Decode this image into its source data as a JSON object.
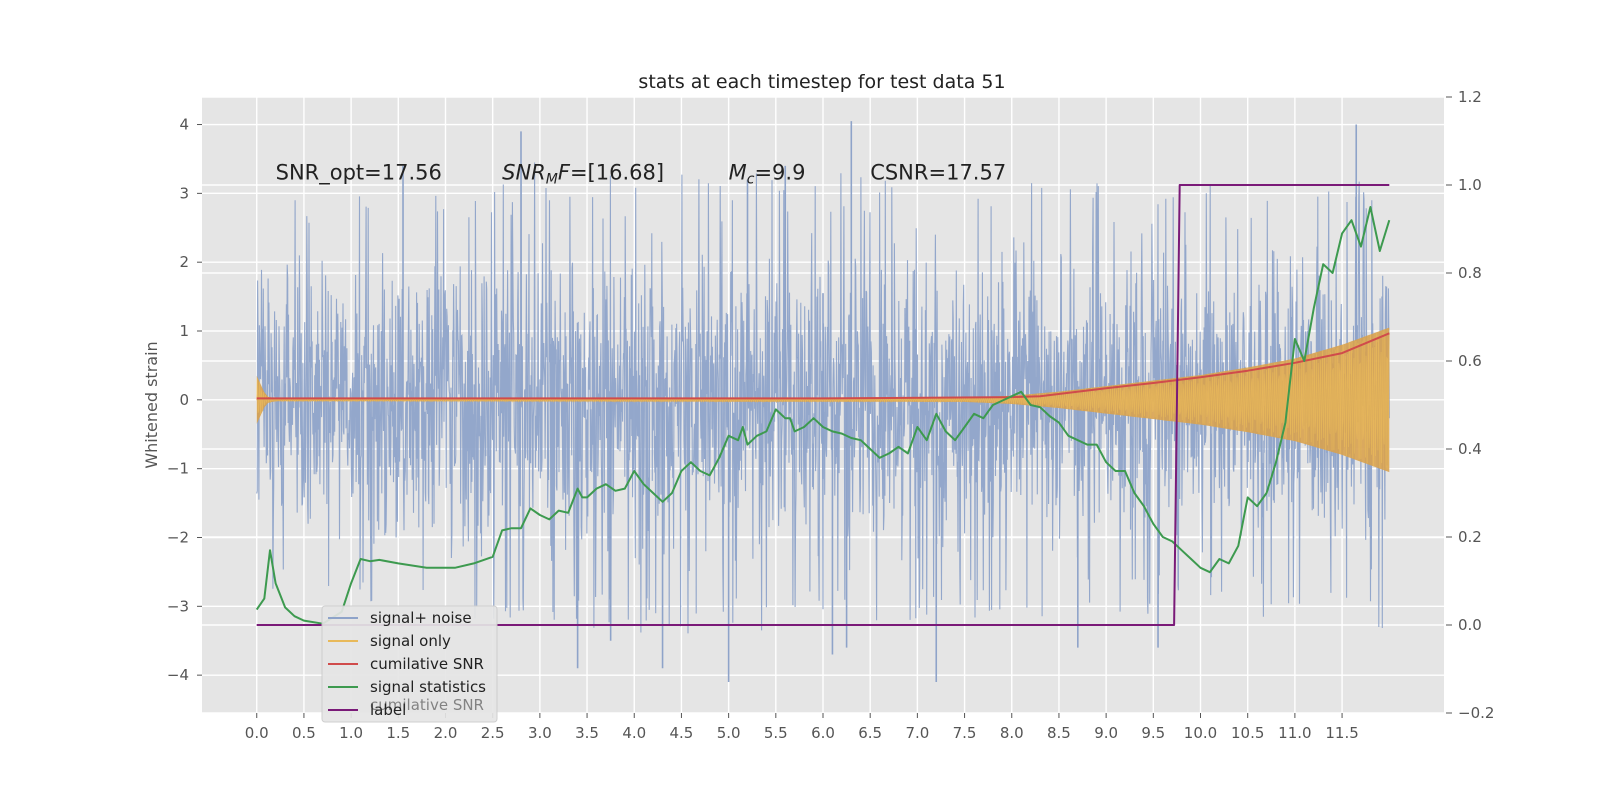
{
  "chart_data": {
    "type": "line",
    "title": "stats at each timestep for test data 51",
    "xlabel": "",
    "ylabel": "Whitened strain",
    "y2label": "",
    "xlim": [
      -0.58,
      12.58
    ],
    "ylim": [
      -4.55,
      4.4
    ],
    "y2lim": [
      -0.2,
      1.2
    ],
    "xticks": [
      "0.0",
      "0.5",
      "1.0",
      "1.5",
      "2.0",
      "2.5",
      "3.0",
      "3.5",
      "4.0",
      "4.5",
      "5.0",
      "5.5",
      "6.0",
      "6.5",
      "7.0",
      "7.5",
      "8.0",
      "8.5",
      "9.0",
      "9.5",
      "10.0",
      "10.5",
      "11.0",
      "11.5"
    ],
    "yticks": [
      -4,
      -3,
      -2,
      -1,
      0,
      1,
      2,
      3,
      4
    ],
    "y2ticks": [
      "−0.2",
      "0.0",
      "0.2",
      "0.4",
      "0.6",
      "0.8",
      "1.0",
      "1.2"
    ],
    "grid": true,
    "legend_position": "lower-left",
    "annotations": [
      {
        "label": "SNR_opt=17.56",
        "x": 0.2,
        "y": 3.3
      },
      {
        "label": "SNR_MF=[16.68]",
        "x": 2.6,
        "y": 3.3
      },
      {
        "label": "M_c=9.9",
        "x": 5.0,
        "y": 3.3
      },
      {
        "label": "CSNR=17.57",
        "x": 6.5,
        "y": 3.3
      }
    ],
    "series": [
      {
        "name": "signal+ noise",
        "axis": "left",
        "color": "#8ea3c9",
        "style": "dense-noise",
        "x_range": [
          0.0,
          12.0
        ],
        "envelope_x": [
          0.0,
          1.0,
          2.0,
          3.0,
          4.0,
          5.0,
          6.0,
          7.0,
          8.0,
          9.0,
          10.0,
          11.0,
          12.0
        ],
        "envelope_abs": [
          2.7,
          2.9,
          3.1,
          3.3,
          3.3,
          3.2,
          3.2,
          3.1,
          3.0,
          3.0,
          3.0,
          3.2,
          3.2
        ],
        "spikes": [
          [
            1.55,
            3.4
          ],
          [
            2.8,
            3.9
          ],
          [
            3.4,
            -3.9
          ],
          [
            3.75,
            -3.5
          ],
          [
            4.3,
            -3.9
          ],
          [
            5.0,
            -4.1
          ],
          [
            5.2,
            3.2
          ],
          [
            5.6,
            3.4
          ],
          [
            6.1,
            -3.7
          ],
          [
            6.25,
            -3.6
          ],
          [
            6.3,
            4.05
          ],
          [
            6.0,
            1.55
          ],
          [
            6.0,
            -1.15
          ],
          [
            7.2,
            -4.1
          ],
          [
            8.7,
            -3.6
          ],
          [
            9.55,
            -3.6
          ],
          [
            11.65,
            4.0
          ]
        ]
      },
      {
        "name": "signal only",
        "axis": "left",
        "color": "#e8b95a",
        "fill_color": "#d8a24f",
        "style": "chirp",
        "x": [
          0.0,
          0.1,
          0.2,
          7.5,
          8.0,
          8.5,
          9.0,
          9.5,
          10.0,
          10.5,
          11.0,
          11.5,
          12.0
        ],
        "amp": [
          0.35,
          0.05,
          0.02,
          0.03,
          0.06,
          0.12,
          0.2,
          0.28,
          0.36,
          0.47,
          0.6,
          0.8,
          1.05
        ]
      },
      {
        "name": "cumilative SNR",
        "axis": "right",
        "color": "#d04b4b",
        "x": [
          0.0,
          3.0,
          6.0,
          8.0,
          8.3,
          9.0,
          9.5,
          10.0,
          10.5,
          11.0,
          11.5,
          12.0
        ],
        "y": [
          0.515,
          0.515,
          0.515,
          0.518,
          0.52,
          0.538,
          0.55,
          0.563,
          0.578,
          0.596,
          0.618,
          0.663
        ]
      },
      {
        "name": "signal statistics",
        "axis": "right",
        "color": "#3d9a4f",
        "x": [
          0.0,
          0.08,
          0.14,
          0.2,
          0.3,
          0.4,
          0.5,
          0.7,
          0.9,
          1.0,
          1.1,
          1.2,
          1.3,
          1.5,
          1.8,
          2.1,
          2.3,
          2.5,
          2.6,
          2.7,
          2.8,
          2.9,
          3.0,
          3.1,
          3.2,
          3.3,
          3.4,
          3.45,
          3.5,
          3.6,
          3.7,
          3.8,
          3.9,
          4.0,
          4.1,
          4.2,
          4.3,
          4.4,
          4.5,
          4.6,
          4.7,
          4.8,
          4.9,
          5.0,
          5.1,
          5.15,
          5.2,
          5.3,
          5.4,
          5.5,
          5.6,
          5.65,
          5.7,
          5.8,
          5.9,
          6.0,
          6.1,
          6.2,
          6.3,
          6.4,
          6.5,
          6.6,
          6.7,
          6.8,
          6.9,
          7.0,
          7.1,
          7.2,
          7.3,
          7.4,
          7.5,
          7.6,
          7.7,
          7.8,
          7.9,
          8.0,
          8.1,
          8.2,
          8.3,
          8.4,
          8.5,
          8.6,
          8.7,
          8.8,
          8.9,
          9.0,
          9.1,
          9.2,
          9.3,
          9.4,
          9.5,
          9.6,
          9.7,
          9.8,
          9.9,
          10.0,
          10.1,
          10.2,
          10.3,
          10.4,
          10.5,
          10.6,
          10.7,
          10.8,
          10.9,
          11.0,
          11.1,
          11.2,
          11.3,
          11.4,
          11.5,
          11.6,
          11.7,
          11.8,
          11.9,
          12.0
        ],
        "y": [
          0.035,
          0.06,
          0.17,
          0.095,
          0.04,
          0.02,
          0.01,
          0.003,
          0.03,
          0.095,
          0.15,
          0.145,
          0.148,
          0.14,
          0.13,
          0.13,
          0.14,
          0.155,
          0.215,
          0.22,
          0.22,
          0.265,
          0.25,
          0.24,
          0.26,
          0.255,
          0.31,
          0.29,
          0.29,
          0.31,
          0.32,
          0.305,
          0.31,
          0.35,
          0.32,
          0.3,
          0.28,
          0.3,
          0.35,
          0.37,
          0.35,
          0.34,
          0.38,
          0.43,
          0.42,
          0.45,
          0.41,
          0.43,
          0.44,
          0.49,
          0.47,
          0.47,
          0.44,
          0.45,
          0.47,
          0.45,
          0.44,
          0.435,
          0.425,
          0.42,
          0.4,
          0.38,
          0.39,
          0.405,
          0.39,
          0.45,
          0.42,
          0.48,
          0.44,
          0.42,
          0.45,
          0.48,
          0.47,
          0.5,
          0.51,
          0.52,
          0.53,
          0.5,
          0.495,
          0.475,
          0.46,
          0.43,
          0.42,
          0.41,
          0.41,
          0.37,
          0.35,
          0.35,
          0.3,
          0.27,
          0.23,
          0.2,
          0.19,
          0.17,
          0.15,
          0.13,
          0.12,
          0.15,
          0.14,
          0.18,
          0.29,
          0.27,
          0.3,
          0.37,
          0.46,
          0.65,
          0.6,
          0.72,
          0.82,
          0.8,
          0.89,
          0.92,
          0.86,
          0.95,
          0.85,
          0.92
        ]
      },
      {
        "name": "label",
        "axis": "right",
        "color": "#7a1a78",
        "x": [
          0.0,
          9.72,
          9.78,
          12.0
        ],
        "y": [
          0.0,
          0.0,
          1.0,
          1.0
        ]
      }
    ],
    "legend_overlap_text": "cumilative SNR"
  }
}
